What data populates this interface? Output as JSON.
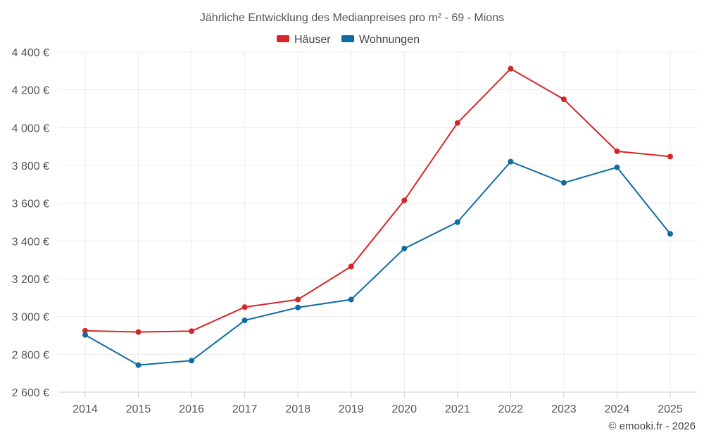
{
  "chart_data": {
    "type": "line",
    "title": "Jährliche Entwicklung des Medianpreises pro m² - 69 - Mions",
    "x": [
      "2014",
      "2015",
      "2016",
      "2017",
      "2018",
      "2019",
      "2020",
      "2021",
      "2022",
      "2023",
      "2024",
      "2025"
    ],
    "y_ticks": [
      2600,
      2800,
      3000,
      3200,
      3400,
      3600,
      3800,
      4000,
      4200,
      4400
    ],
    "y_tick_labels": [
      "2 600 €",
      "2 800 €",
      "3 000 €",
      "3 200 €",
      "3 400 €",
      "3 600 €",
      "3 800 €",
      "4 000 €",
      "4 200 €",
      "4 400 €"
    ],
    "ylim": [
      2600,
      4400
    ],
    "grid": true,
    "legend": "top-center",
    "series": [
      {
        "name": "Häuser",
        "color": "#d62728",
        "values": [
          2925,
          2918,
          2923,
          3050,
          3090,
          3265,
          3615,
          4025,
          4312,
          4150,
          3875,
          3847
        ]
      },
      {
        "name": "Wohnungen",
        "color": "#0f6ca0",
        "values": [
          2903,
          2743,
          2767,
          2980,
          3048,
          3090,
          3360,
          3500,
          3820,
          3708,
          3790,
          3438
        ]
      }
    ]
  },
  "credit": "© emooki.fr - 2026"
}
